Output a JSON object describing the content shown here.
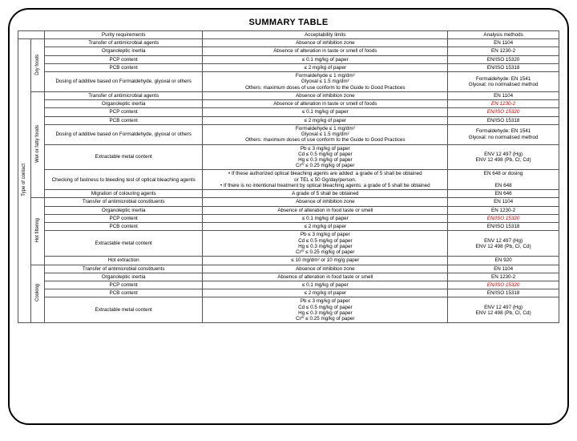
{
  "title": "SUMMARY TABLE",
  "headers": {
    "c1": "Purity requirements",
    "c2": "Acceptability limits",
    "c3": "Analysis methods"
  },
  "outerCat": "Type of contact",
  "groups": [
    {
      "label": "Dry foods",
      "rows": [
        {
          "c1": "Transfer of antimicrobial agents",
          "c2": "Absence of inhibition zone",
          "c3": "EN 1104"
        },
        {
          "c1": "Organoleptic inertia",
          "c2": "Absence of alteration in taste or smell of foods",
          "c3": "EN 1230-2"
        },
        {
          "c1": "PCP content",
          "c2": "≤ 0.1 mg/kg of paper",
          "c3": "EN/ISO 15320"
        },
        {
          "c1": "PCB content",
          "c2": "≤ 2 mg/kg of paper",
          "c3": "EN/ISO 15318"
        },
        {
          "c1": "Dosing of additive based on Formaldehyde, glyoxal or others",
          "c2": "Formaldehyde ≤ 1 mg/dm²\nGlyoxal ≤ 1.5 mg/dm²\nOthers: maximum doses of use conform to the Guide to Good Practices",
          "c3": "Formaldehyde: EN 1541\nGlyoxal: no normalised method"
        }
      ]
    },
    {
      "label": "Wet or fatty foods",
      "rows": [
        {
          "c1": "Transfer of antimicrobial agents",
          "c2": "Absence of inhibition zone",
          "c3": "EN 1104"
        },
        {
          "c1": "Organoleptic inertia",
          "c2": "Absence of alteration in taste or smell of foods",
          "c3": "EN 1230-2",
          "red3": true
        },
        {
          "c1": "PCP content",
          "c2": "≤ 0.1 mg/kg of paper",
          "c3": "EN/ISO 15320",
          "red3": true
        },
        {
          "c1": "PCB content",
          "c2": "≤ 2 mg/kg of paper",
          "c3": "EN/ISO 15318"
        },
        {
          "c1": "Dosing of additive based on Formaldehyde, glyoxal or others",
          "c2": "Formaldehyde ≤ 1 mg/dm²\nGlyoxal ≤ 1.5 mg/dm²\nOthers: maximum doses of use conform to the Guide to Good Practices",
          "c3": "Formaldehyde: EN 1541\nGlyoxal: no normalised method"
        },
        {
          "c1": "Extractable metal content",
          "c2": "Pb   ≤ 3 mg/kg of paper\nCd   ≤ 0.5 mg/kg of paper\nHg   ≤ 0.3 mg/kg of paper\nCrᴵⱽ  ≤ 0.25 mg/kg of paper",
          "c3": "ENV 12 497 (Hg)\nENV 12 498 (Pb, Cr, Cd)"
        },
        {
          "c1": "Checking of fastness to bleeding test of optical bleaching agents",
          "c2": "• If these authorized optical bleaching agents are added: a grade of 5 shall be obtained\nor TEL ≤ 50 Gg/day/person.\n• If there is no intentional treatment by optical bleaching agents: a grade of 5 shall be obtained",
          "c3": "EN 648 or dosing\n\nEN 648"
        },
        {
          "c1": "Migration of colouring agents",
          "c2": "A grade of 5 shall be obtained",
          "c3": "EN 646"
        }
      ]
    },
    {
      "label": "Hot filtering",
      "rows": [
        {
          "c1": "Transfer of antimicrobial constituents",
          "c2": "Absence of inhibition zone",
          "c3": "EN 1104"
        },
        {
          "c1": "Organoleptic inertia",
          "c2": "Absence of alteration in food taste or smell",
          "c3": "EN 1230-2"
        },
        {
          "c1": "PCP content",
          "c2": "≤ 0.1 mg/kg of paper",
          "c3": "EN/ISO 15320",
          "red3": true
        },
        {
          "c1": "PCB content",
          "c2": "≤ 2 mg/kg of paper",
          "c3": "EN/ISO 15318"
        },
        {
          "c1": "Extractable metal content",
          "c2": "Pb ≤ 3 mg/kg of paper\nCd ≤ 0.5 mg/kg of paper\nHg ≤ 0.3 mg/kg of paper\nCrᴵⱽ ≤ 0.25 mg/kg of paper",
          "c3": "ENV 12 497 (Hg)\nENV 12 498 (Pb, Cr, Cd)"
        },
        {
          "c1": "Hot extraction",
          "c2": "≤ 10 mg/dm² or 10 mg/g paper",
          "c3": "EN 920"
        }
      ]
    },
    {
      "label": "Cooking",
      "rows": [
        {
          "c1": "Transfer of antimicrobial constituents",
          "c2": "Absence of inhibition zone",
          "c3": "EN 1104"
        },
        {
          "c1": "Organoleptic inertia",
          "c2": "Absence of alteration in food taste or smell",
          "c3": "EN 1230-2"
        },
        {
          "c1": "PCP content",
          "c2": "≤ 0.1 mg/kg of paper",
          "c3": "EN/ISO 15320",
          "red3": true
        },
        {
          "c1": "PCB content",
          "c2": "≤ 2 mg/kg of paper",
          "c3": "EN/ISO 15318"
        },
        {
          "c1": "Extractable metal content",
          "c2": "Pb ≤ 3 mg/kg of paper\nCd ≤ 0.5 mg/kg of paper\nHg ≤ 0.3 mg/kg of paper\nCrᴵⱽ ≤ 0.25 mg/kg of paper",
          "c3": "ENV 12 497 (Hg)\nENV 12 498 (Pb, Cr, Cd)"
        }
      ]
    }
  ]
}
